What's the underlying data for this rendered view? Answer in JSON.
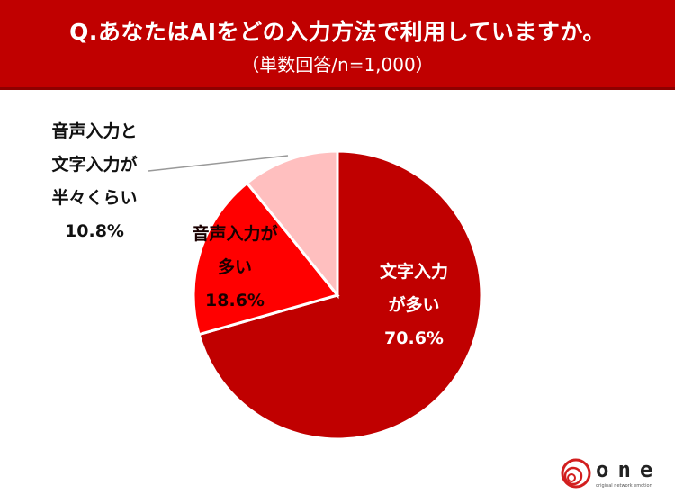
{
  "header": {
    "title": "Q.あなたはAIをどの入力方法で利用していますか。",
    "subtitle": "（単数回答/n=1,000）"
  },
  "chart_data": {
    "type": "pie",
    "title": "Q.あなたはAIをどの入力方法で利用していますか。",
    "subtitle": "（単数回答/n=1,000）",
    "start_angle": "12 o'clock, clockwise",
    "slices": [
      {
        "label": "文字入力が多い",
        "value": 70.6,
        "color": "#c00000"
      },
      {
        "label": "音声入力が多い",
        "value": 18.6,
        "color": "#ff0000"
      },
      {
        "label": "音声入力と文字入力が半々くらい",
        "value": 10.8,
        "color": "#ffbfbf"
      }
    ],
    "legend": "none (data labels)"
  },
  "labels": {
    "text": {
      "lines": [
        "文字入力",
        "が多い"
      ],
      "pct": "70.6%"
    },
    "voice": {
      "lines": [
        "音声入力が",
        "多い"
      ],
      "pct": "18.6%"
    },
    "half": {
      "lines": [
        "音声入力と",
        "文字入力が",
        "半々くらい"
      ],
      "pct": "10.8%"
    }
  },
  "logo": {
    "word": "one",
    "tagline": "original network emotion"
  }
}
